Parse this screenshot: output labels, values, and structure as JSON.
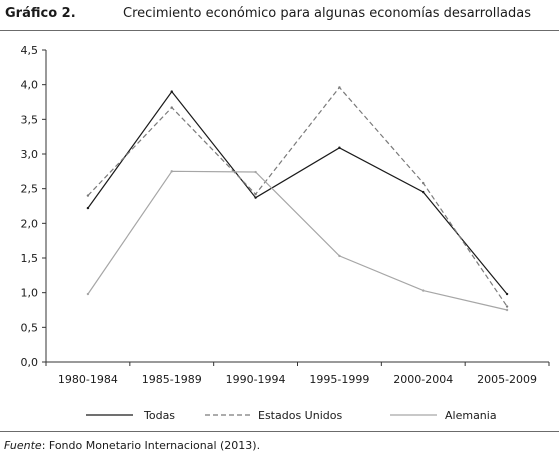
{
  "figure": {
    "label": "Gráfico 2.",
    "title": "Crecimiento económico para algunas economías desarrolladas",
    "source_label": "Fuente",
    "source_text": ": Fondo Monetario Internacional (2013)."
  },
  "colors": {
    "todas": "#1a1a1a",
    "estados_unidos": "#7a7a7a",
    "alemania": "#a6a6a6",
    "axis": "#333333",
    "rule": "#6b6b6b"
  },
  "chart_data": {
    "type": "line",
    "title": "Crecimiento económico para algunas economías desarrolladas",
    "xlabel": "",
    "ylabel": "",
    "categories": [
      "1980-1984",
      "1985-1989",
      "1990-1994",
      "1995-1999",
      "2000-2004",
      "2005-2009"
    ],
    "ylim": [
      0,
      4.5
    ],
    "yticks": [
      "0,0",
      "0,5",
      "1,0",
      "1,5",
      "2,0",
      "2,5",
      "3,0",
      "3,5",
      "4,0",
      "4,5"
    ],
    "grid": false,
    "legend_position": "bottom",
    "series": [
      {
        "name": "Todas",
        "style": "solid",
        "color": "#1a1a1a",
        "values": [
          2.22,
          3.9,
          2.37,
          3.09,
          2.45,
          0.98
        ]
      },
      {
        "name": "Estados Unidos",
        "style": "dashed",
        "color": "#7a7a7a",
        "values": [
          2.4,
          3.67,
          2.42,
          3.96,
          2.58,
          0.8
        ]
      },
      {
        "name": "Alemania",
        "style": "solid",
        "color": "#a6a6a6",
        "values": [
          0.98,
          2.75,
          2.74,
          1.53,
          1.03,
          0.75
        ]
      }
    ]
  }
}
